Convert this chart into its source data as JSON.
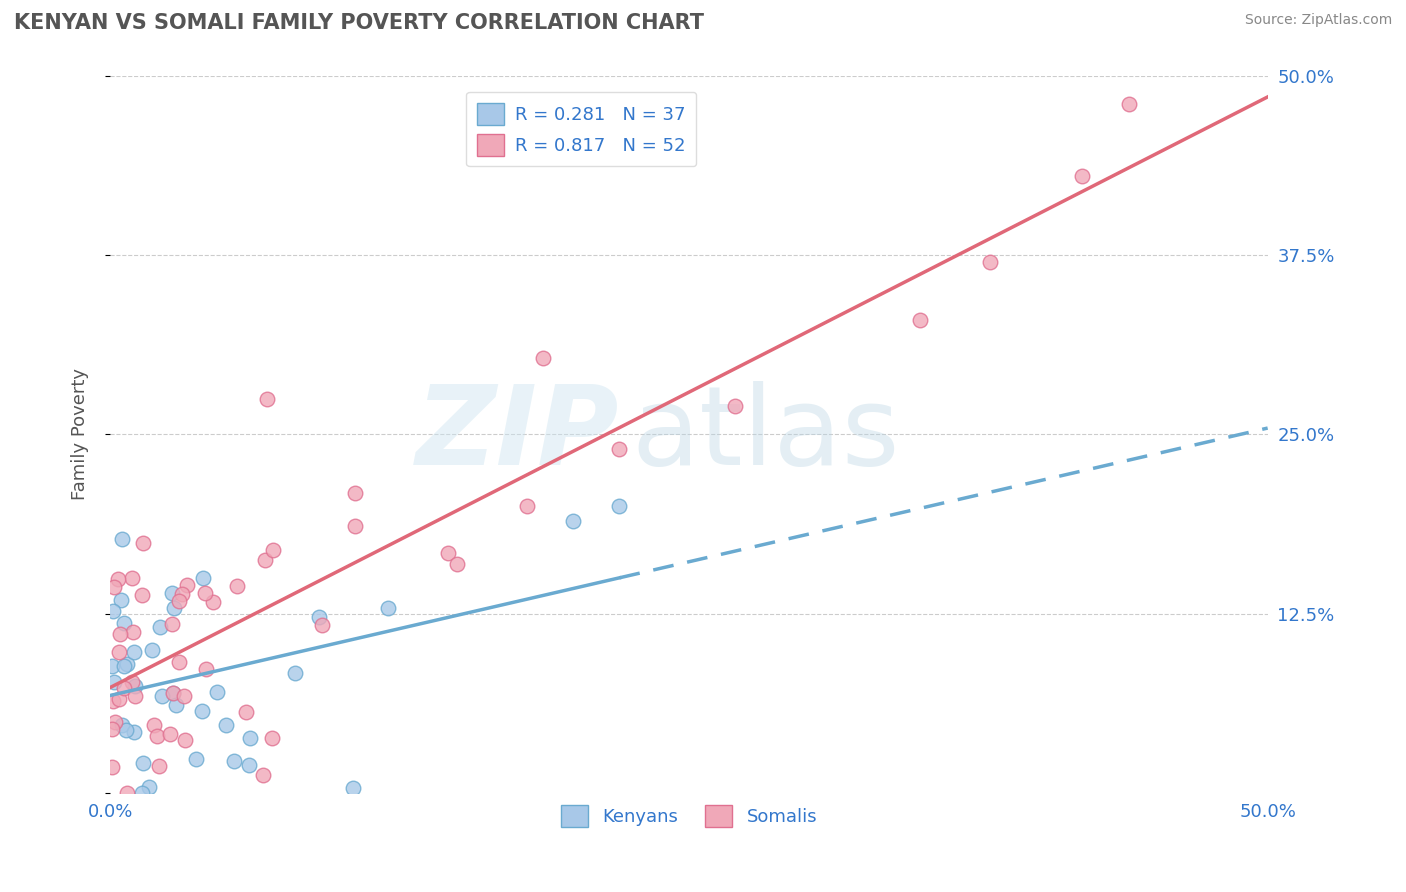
{
  "title": "KENYAN VS SOMALI FAMILY POVERTY CORRELATION CHART",
  "source": "Source: ZipAtlas.com",
  "ylabel": "Family Poverty",
  "kenyan_R": 0.281,
  "kenyan_N": 37,
  "somali_R": 0.817,
  "somali_N": 52,
  "kenyan_color": "#a8c8e8",
  "somali_color": "#f0a8b8",
  "kenyan_edge_color": "#6aaad0",
  "somali_edge_color": "#e07090",
  "kenyan_line_color": "#6aaad0",
  "somali_line_color": "#e06878",
  "legend_text_color": "#3377cc",
  "tick_color": "#3377cc",
  "grid_color": "#cccccc",
  "title_color": "#555555",
  "source_color": "#888888",
  "ylabel_color": "#555555",
  "legend_label_kenyan": "Kenyans",
  "legend_label_somali": "Somalis",
  "xlim": [
    0.0,
    0.5
  ],
  "ylim": [
    0.0,
    0.5
  ],
  "x_ticks": [
    0.0,
    0.125,
    0.25,
    0.375,
    0.5
  ],
  "y_ticks": [
    0.0,
    0.125,
    0.25,
    0.375,
    0.5
  ],
  "x_tick_labels": [
    "0.0%",
    "",
    "",
    "",
    "50.0%"
  ],
  "y_tick_labels": [
    "",
    "12.5%",
    "25.0%",
    "37.5%",
    "50.0%"
  ],
  "kenyan_seed": 42,
  "somali_seed": 99
}
